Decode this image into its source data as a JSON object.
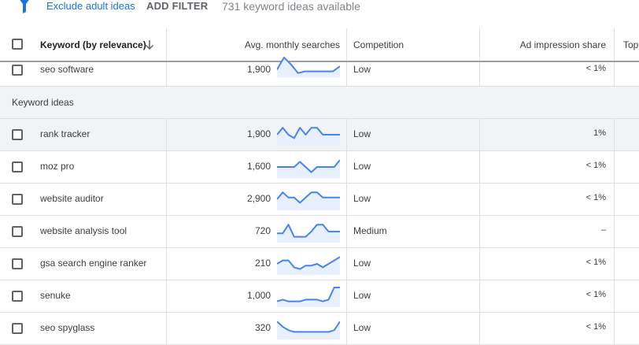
{
  "filter_bar": {
    "exclude_label": "Exclude adult ideas",
    "add_filter_label": "ADD FILTER",
    "ideas_count": "731 keyword ideas available"
  },
  "table": {
    "headers": {
      "keyword": "Keyword (by relevance)",
      "searches": "Avg. monthly searches",
      "competition": "Competition",
      "impression": "Ad impression share",
      "top": "Top"
    },
    "pinned": {
      "keyword": "seo software",
      "searches": "1,900",
      "competition": "Low",
      "impression": "< 1%",
      "trend": [
        3,
        10,
        6,
        1,
        2,
        2,
        2,
        2,
        2,
        5
      ]
    },
    "group_label": "Keyword ideas",
    "rows": [
      {
        "keyword": "rank tracker",
        "searches": "1,900",
        "competition": "Low",
        "impression": "1%",
        "trend": [
          5,
          9,
          5,
          3,
          9,
          5,
          9,
          9,
          5,
          5,
          5,
          5
        ]
      },
      {
        "keyword": "moz pro",
        "searches": "1,600",
        "competition": "Low",
        "impression": "< 1%",
        "trend": [
          5,
          5,
          5,
          5,
          8,
          5,
          2,
          5,
          5,
          5,
          5,
          9
        ]
      },
      {
        "keyword": "website auditor",
        "searches": "2,900",
        "competition": "Low",
        "impression": "< 1%",
        "trend": [
          5,
          9,
          6,
          6,
          3,
          6,
          9,
          9,
          6,
          6,
          6,
          6
        ]
      },
      {
        "keyword": "website analysis tool",
        "searches": "720",
        "competition": "Medium",
        "impression": "–",
        "trend": [
          4,
          4,
          9,
          2,
          2,
          2,
          5,
          9,
          9,
          5,
          5,
          5
        ]
      },
      {
        "keyword": "gsa search engine ranker",
        "searches": "210",
        "competition": "Low",
        "impression": "< 1%",
        "trend": [
          5,
          7,
          7,
          3,
          2,
          4,
          4,
          5,
          3,
          5,
          7,
          9
        ]
      },
      {
        "keyword": "senuke",
        "searches": "1,000",
        "competition": "Low",
        "impression": "< 1%",
        "trend": [
          2,
          3,
          2,
          2,
          2,
          3,
          3,
          3,
          2,
          3,
          10,
          10
        ]
      },
      {
        "keyword": "seo spyglass",
        "searches": "320",
        "competition": "Low",
        "impression": "< 1%",
        "trend": [
          9,
          6,
          4,
          3,
          3,
          3,
          3,
          3,
          3,
          3,
          4,
          9
        ]
      }
    ]
  }
}
